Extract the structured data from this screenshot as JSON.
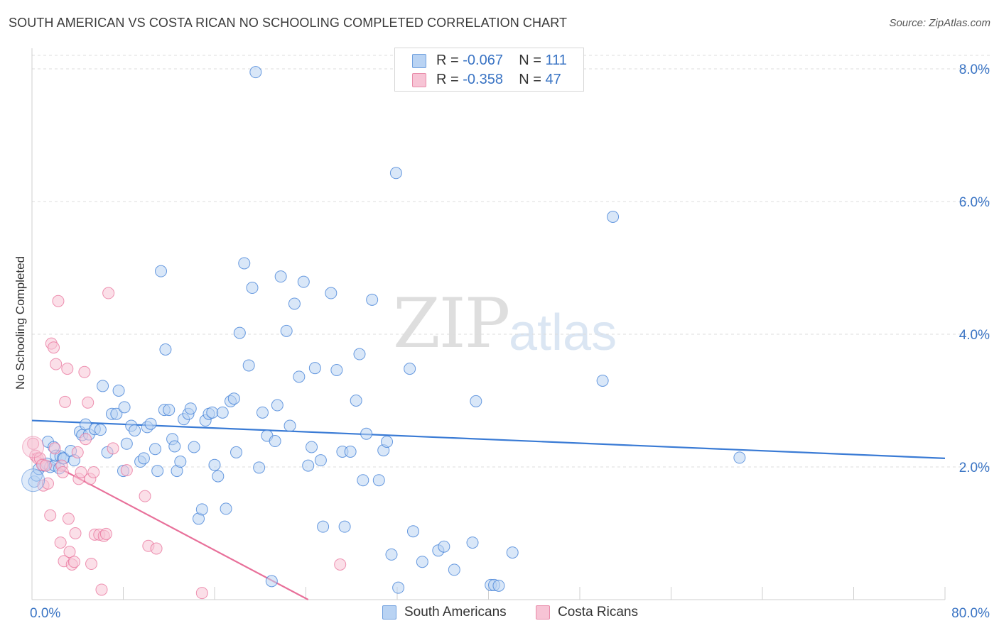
{
  "chart_data": {
    "type": "scatter",
    "title": "SOUTH AMERICAN VS COSTA RICAN NO SCHOOLING COMPLETED CORRELATION CHART",
    "source": "Source: ZipAtlas.com",
    "xlabel": "",
    "ylabel": "No Schooling Completed",
    "xlim": [
      0,
      80
    ],
    "ylim": [
      0,
      8.0
    ],
    "x_tick_labels": [
      "0.0%",
      "80.0%"
    ],
    "y_tick_labels": [
      "2.0%",
      "4.0%",
      "6.0%",
      "8.0%"
    ],
    "y_ticks": [
      2,
      4,
      6,
      8
    ],
    "grid": true,
    "legend_position": "top-center",
    "watermark": [
      "ZIP",
      "atlas"
    ],
    "colors": {
      "blue": "#3a7bd5",
      "pink": "#e8709a",
      "blue_fill": "#b9d3f3",
      "pink_fill": "#f7c4d5"
    },
    "stats": [
      {
        "r_label": "R = ",
        "r": "-0.067",
        "n_label": "N = ",
        "n": "111"
      },
      {
        "r_label": "R = ",
        "r": "-0.358",
        "n_label": "N = ",
        "n": "47"
      }
    ],
    "series": [
      {
        "name": "South Americans",
        "color": "#3a7bd5",
        "trend": {
          "x": [
            0,
            80
          ],
          "y": [
            2.7,
            2.13
          ]
        },
        "points": [
          [
            0.2,
            1.78
          ],
          [
            0.4,
            1.87
          ],
          [
            0.6,
            1.97
          ],
          [
            1.0,
            2.02
          ],
          [
            1.3,
            2.05
          ],
          [
            1.4,
            2.38
          ],
          [
            1.6,
            2.0
          ],
          [
            1.9,
            2.3
          ],
          [
            2.0,
            2.02
          ],
          [
            2.1,
            2.17
          ],
          [
            2.4,
            1.98
          ],
          [
            2.5,
            2.16
          ],
          [
            2.7,
            2.13
          ],
          [
            2.8,
            2.13
          ],
          [
            3.4,
            2.24
          ],
          [
            3.7,
            2.1
          ],
          [
            4.2,
            2.53
          ],
          [
            4.4,
            2.48
          ],
          [
            4.7,
            2.64
          ],
          [
            5.0,
            2.49
          ],
          [
            5.5,
            2.57
          ],
          [
            6.0,
            2.56
          ],
          [
            6.2,
            3.22
          ],
          [
            6.6,
            2.22
          ],
          [
            7.0,
            2.8
          ],
          [
            7.4,
            2.8
          ],
          [
            7.6,
            3.15
          ],
          [
            8.0,
            1.94
          ],
          [
            8.1,
            2.9
          ],
          [
            8.3,
            2.35
          ],
          [
            8.7,
            2.62
          ],
          [
            9.0,
            2.55
          ],
          [
            9.5,
            2.08
          ],
          [
            9.8,
            2.13
          ],
          [
            10.1,
            2.6
          ],
          [
            10.4,
            2.65
          ],
          [
            10.8,
            2.27
          ],
          [
            11.0,
            1.94
          ],
          [
            11.3,
            4.95
          ],
          [
            11.6,
            2.86
          ],
          [
            11.7,
            3.77
          ],
          [
            12.0,
            2.86
          ],
          [
            12.3,
            2.42
          ],
          [
            12.5,
            2.31
          ],
          [
            12.7,
            1.94
          ],
          [
            13.0,
            2.08
          ],
          [
            13.3,
            2.72
          ],
          [
            13.7,
            2.8
          ],
          [
            13.9,
            2.88
          ],
          [
            14.2,
            2.3
          ],
          [
            14.6,
            1.22
          ],
          [
            14.9,
            1.36
          ],
          [
            15.2,
            2.7
          ],
          [
            15.5,
            2.8
          ],
          [
            15.8,
            2.82
          ],
          [
            16.0,
            2.03
          ],
          [
            16.3,
            1.86
          ],
          [
            16.7,
            2.82
          ],
          [
            17.0,
            1.37
          ],
          [
            17.4,
            2.99
          ],
          [
            17.7,
            3.03
          ],
          [
            17.9,
            2.22
          ],
          [
            18.2,
            4.02
          ],
          [
            18.6,
            5.07
          ],
          [
            19.0,
            3.53
          ],
          [
            19.3,
            4.7
          ],
          [
            19.6,
            7.95
          ],
          [
            19.9,
            1.99
          ],
          [
            20.2,
            2.82
          ],
          [
            20.6,
            2.47
          ],
          [
            21.0,
            0.28
          ],
          [
            21.3,
            2.39
          ],
          [
            21.5,
            2.93
          ],
          [
            21.8,
            4.87
          ],
          [
            22.3,
            4.05
          ],
          [
            22.6,
            2.62
          ],
          [
            23.0,
            4.46
          ],
          [
            23.4,
            3.36
          ],
          [
            23.8,
            4.79
          ],
          [
            24.2,
            2.02
          ],
          [
            24.5,
            2.3
          ],
          [
            24.8,
            3.49
          ],
          [
            25.3,
            2.1
          ],
          [
            25.5,
            1.1
          ],
          [
            26.2,
            4.62
          ],
          [
            26.7,
            3.46
          ],
          [
            27.2,
            2.23
          ],
          [
            27.4,
            1.1
          ],
          [
            27.9,
            2.23
          ],
          [
            28.4,
            3.0
          ],
          [
            28.7,
            3.7
          ],
          [
            29.0,
            1.8
          ],
          [
            29.3,
            2.5
          ],
          [
            29.8,
            4.52
          ],
          [
            30.4,
            1.8
          ],
          [
            30.8,
            2.25
          ],
          [
            31.1,
            2.38
          ],
          [
            31.5,
            0.68
          ],
          [
            31.9,
            6.43
          ],
          [
            32.1,
            0.18
          ],
          [
            33.1,
            3.48
          ],
          [
            33.4,
            1.03
          ],
          [
            34.2,
            0.57
          ],
          [
            35.6,
            0.74
          ],
          [
            36.1,
            0.8
          ],
          [
            37.0,
            0.45
          ],
          [
            38.6,
            0.86
          ],
          [
            38.9,
            2.99
          ],
          [
            40.2,
            0.22
          ],
          [
            40.5,
            0.22
          ],
          [
            40.9,
            0.21
          ],
          [
            42.1,
            0.71
          ],
          [
            50.0,
            3.3
          ],
          [
            50.9,
            5.77
          ],
          [
            62.0,
            2.14
          ]
        ]
      },
      {
        "name": "Costa Ricans",
        "color": "#e8709a",
        "trend": {
          "x": [
            0,
            24.2
          ],
          "y": [
            2.2,
            0.0
          ]
        },
        "points": [
          [
            0.1,
            2.35
          ],
          [
            0.3,
            2.17
          ],
          [
            0.5,
            2.13
          ],
          [
            0.7,
            2.13
          ],
          [
            0.9,
            2.03
          ],
          [
            1.0,
            1.72
          ],
          [
            1.2,
            2.02
          ],
          [
            1.4,
            1.75
          ],
          [
            1.6,
            1.27
          ],
          [
            1.7,
            3.86
          ],
          [
            1.9,
            3.8
          ],
          [
            2.0,
            2.28
          ],
          [
            2.1,
            3.55
          ],
          [
            2.3,
            4.5
          ],
          [
            2.5,
            0.86
          ],
          [
            2.6,
            2.02
          ],
          [
            2.7,
            1.92
          ],
          [
            2.8,
            0.58
          ],
          [
            2.9,
            2.98
          ],
          [
            3.1,
            3.48
          ],
          [
            3.2,
            1.22
          ],
          [
            3.3,
            0.72
          ],
          [
            3.5,
            0.53
          ],
          [
            3.7,
            0.57
          ],
          [
            3.8,
            1.0
          ],
          [
            4.0,
            2.22
          ],
          [
            4.1,
            1.82
          ],
          [
            4.3,
            1.92
          ],
          [
            4.6,
            3.43
          ],
          [
            4.7,
            2.42
          ],
          [
            4.9,
            2.97
          ],
          [
            5.1,
            1.82
          ],
          [
            5.2,
            0.54
          ],
          [
            5.4,
            1.92
          ],
          [
            5.5,
            0.98
          ],
          [
            5.9,
            0.98
          ],
          [
            6.1,
            0.15
          ],
          [
            6.3,
            0.96
          ],
          [
            6.5,
            0.99
          ],
          [
            6.7,
            4.62
          ],
          [
            7.1,
            2.28
          ],
          [
            8.3,
            1.95
          ],
          [
            9.9,
            1.56
          ],
          [
            10.2,
            0.81
          ],
          [
            10.9,
            0.77
          ],
          [
            14.9,
            0.1
          ],
          [
            27.0,
            0.53
          ]
        ]
      }
    ]
  },
  "bottom_legend": [
    "South Americans",
    "Costa Ricans"
  ]
}
